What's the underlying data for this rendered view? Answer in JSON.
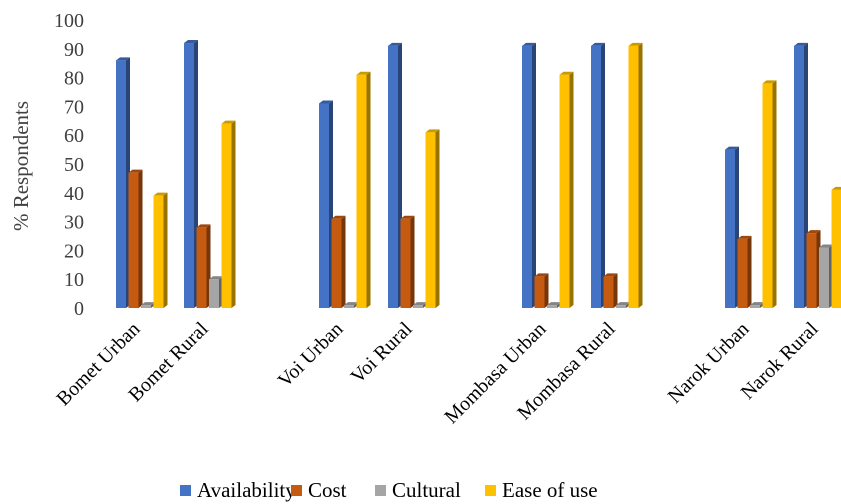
{
  "chart_data": {
    "type": "bar",
    "title": "",
    "xlabel": "",
    "ylabel": "% Respondents",
    "ylim": [
      0,
      100
    ],
    "yticks": [
      0,
      10,
      20,
      30,
      40,
      50,
      60,
      70,
      80,
      90,
      100
    ],
    "grid": false,
    "legend": "bottom",
    "categories": [
      "Bomet Urban",
      "Bomet Rural",
      "Voi Urban",
      "Voi Rural",
      "Mombasa Urban",
      "Mombasa Rural",
      "Narok Urban",
      "Narok Rural"
    ],
    "series": [
      {
        "name": "Availability",
        "color": "#4472C4",
        "values": [
          86,
          92,
          71,
          91,
          91,
          91,
          55,
          91
        ]
      },
      {
        "name": "Cost",
        "color": "#C55A11",
        "values": [
          47,
          28,
          31,
          31,
          11,
          11,
          24,
          26
        ]
      },
      {
        "name": "Cultural",
        "color": "#A5A5A5",
        "values": [
          1,
          10,
          1,
          1,
          1,
          1,
          1,
          21
        ]
      },
      {
        "name": "Ease of use",
        "color": "#FFC000",
        "values": [
          39,
          64,
          81,
          61,
          81,
          91,
          78,
          41
        ]
      }
    ]
  }
}
